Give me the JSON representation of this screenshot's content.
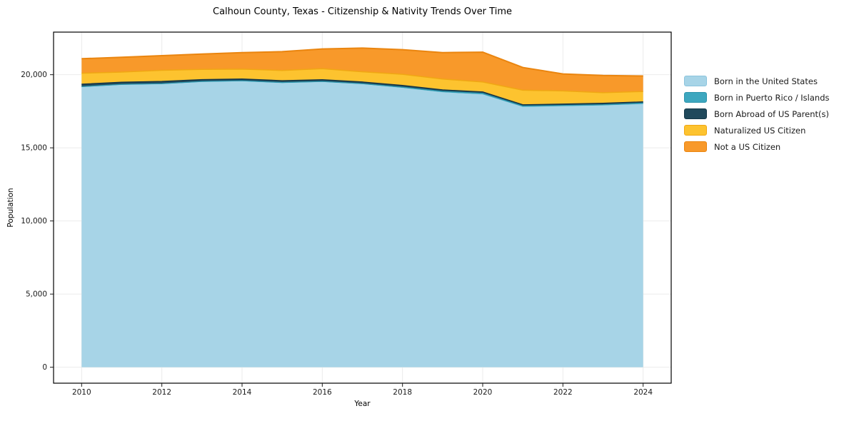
{
  "chart_data": {
    "type": "area",
    "stacked": true,
    "title": "Calhoun County, Texas - Citizenship & Nativity Trends Over Time",
    "xlabel": "Year",
    "ylabel": "Population",
    "grid": true,
    "legend_position": "right",
    "x": [
      2010,
      2011,
      2012,
      2013,
      2014,
      2015,
      2016,
      2017,
      2018,
      2019,
      2020,
      2021,
      2022,
      2023,
      2024
    ],
    "series": [
      {
        "name": "Born in the United States",
        "fill": "#a7d4e7",
        "edge": "#8cc4dd",
        "values": [
          19150,
          19300,
          19350,
          19500,
          19550,
          19430,
          19500,
          19350,
          19100,
          18800,
          18650,
          17800,
          17850,
          17900,
          18000
        ]
      },
      {
        "name": "Born in Puerto Rico / Islands",
        "fill": "#3da7bf",
        "edge": "#2d94ac",
        "values": [
          40,
          40,
          40,
          40,
          40,
          40,
          40,
          40,
          50,
          60,
          80,
          60,
          50,
          50,
          60
        ]
      },
      {
        "name": "Born Abroad of US Parent(s)",
        "fill": "#20495c",
        "edge": "#153748",
        "values": [
          160,
          140,
          150,
          120,
          110,
          120,
          110,
          110,
          110,
          100,
          90,
          80,
          90,
          90,
          80
        ]
      },
      {
        "name": "Naturalized US Citizen",
        "fill": "#fdc32f",
        "edge": "#f0a713",
        "values": [
          750,
          700,
          760,
          700,
          680,
          700,
          760,
          700,
          770,
          740,
          680,
          1000,
          900,
          730,
          710
        ]
      },
      {
        "name": "Not a US Citizen",
        "fill": "#f8992a",
        "edge": "#ea850f",
        "values": [
          990,
          1010,
          1000,
          1055,
          1130,
          1285,
          1350,
          1620,
          1680,
          1810,
          2040,
          1550,
          1160,
          1180,
          1060
        ]
      }
    ],
    "xlim": [
      2009.3,
      2024.7
    ],
    "ylim": [
      -1091,
      22911
    ],
    "xticks": [
      {
        "v": 2010,
        "label": "2010"
      },
      {
        "v": 2012,
        "label": "2012"
      },
      {
        "v": 2014,
        "label": "2014"
      },
      {
        "v": 2016,
        "label": "2016"
      },
      {
        "v": 2018,
        "label": "2018"
      },
      {
        "v": 2020,
        "label": "2020"
      },
      {
        "v": 2022,
        "label": "2022"
      },
      {
        "v": 2024,
        "label": "2024"
      }
    ],
    "yticks": [
      {
        "v": 0,
        "label": "0"
      },
      {
        "v": 5000,
        "label": "5,000"
      },
      {
        "v": 10000,
        "label": "10,000"
      },
      {
        "v": 15000,
        "label": "15,000"
      },
      {
        "v": 20000,
        "label": "20,000"
      }
    ],
    "grid_color": "#ebebeb",
    "spine_color": "#000000",
    "tick_color": "#1a1a1a"
  }
}
